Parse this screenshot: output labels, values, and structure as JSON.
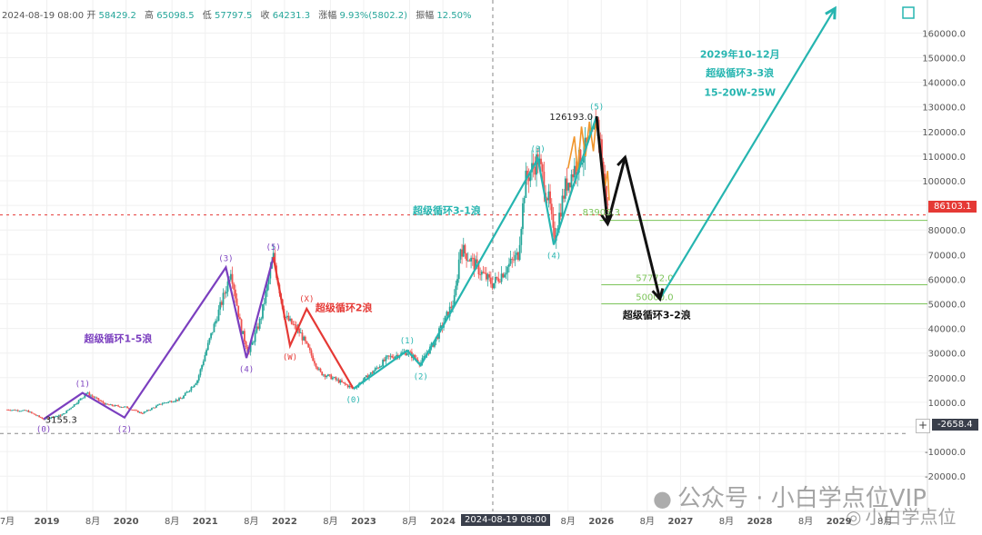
{
  "ohlc_header": {
    "date": "2024-08-19 08:00",
    "open_label": "开",
    "open": "58429.2",
    "high_label": "高",
    "high": "65098.5",
    "low_label": "低",
    "low": "57797.5",
    "close_label": "收",
    "close": "64231.3",
    "change_label": "涨幅",
    "change": "9.93%(5802.2)",
    "amplitude_label": "振幅",
    "amplitude": "12.50%"
  },
  "chart_data": {
    "type": "line",
    "ylim": [
      -28000,
      168000
    ],
    "xlim": [
      2018.5,
      2030.0
    ],
    "grid": true,
    "y_ticks": [
      -20000,
      -10000,
      0,
      10000,
      20000,
      30000,
      40000,
      50000,
      60000,
      70000,
      80000,
      90000,
      100000,
      110000,
      120000,
      130000,
      140000,
      150000,
      160000
    ],
    "y_tick_labels": [
      "-20000.0",
      "-10000.0",
      "0.0",
      "10000.0",
      "20000.0",
      "30000.0",
      "40000.0",
      "50000.0",
      "60000.0",
      "70000.0",
      "80000.0",
      "90000.0",
      "100000.0",
      "110000.0",
      "120000.0",
      "130000.0",
      "140000.0",
      "150000.0",
      "160000.0"
    ],
    "x_ticks": [
      {
        "x": 2018.5,
        "label": "7月"
      },
      {
        "x": 2019.0,
        "label": "2019"
      },
      {
        "x": 2019.58,
        "label": "8月"
      },
      {
        "x": 2020.0,
        "label": "2020"
      },
      {
        "x": 2020.58,
        "label": "8月"
      },
      {
        "x": 2021.0,
        "label": "2021"
      },
      {
        "x": 2021.58,
        "label": "8月"
      },
      {
        "x": 2022.0,
        "label": "2022"
      },
      {
        "x": 2022.58,
        "label": "8月"
      },
      {
        "x": 2023.0,
        "label": "2023"
      },
      {
        "x": 2023.58,
        "label": "8月"
      },
      {
        "x": 2024.0,
        "label": "2024"
      },
      {
        "x": 2025.58,
        "label": "8月"
      },
      {
        "x": 2026.0,
        "label": "2026"
      },
      {
        "x": 2026.58,
        "label": "8月"
      },
      {
        "x": 2027.0,
        "label": "2027"
      },
      {
        "x": 2027.58,
        "label": "8月"
      },
      {
        "x": 2028.0,
        "label": "2028"
      },
      {
        "x": 2028.58,
        "label": "8月"
      },
      {
        "x": 2029.0,
        "label": "2029"
      },
      {
        "x": 2029.58,
        "label": "8月"
      }
    ],
    "crosshair": {
      "x": 2024.63,
      "x_label": "2024-08-19 08:00",
      "y": -2658.4,
      "y_label": "-2658.4"
    },
    "last_price": {
      "value": 86103.1,
      "label": "86103.1",
      "color": "#e53935"
    },
    "price": {
      "name": "",
      "color_up": "#26a69a",
      "color_down": "#ef5350",
      "points": [
        [
          2018.5,
          7000
        ],
        [
          2018.75,
          6500
        ],
        [
          2018.96,
          3155.3
        ],
        [
          2019.2,
          5000
        ],
        [
          2019.45,
          12000
        ],
        [
          2019.5,
          13800
        ],
        [
          2019.75,
          9000
        ],
        [
          2020.0,
          8000
        ],
        [
          2020.2,
          5500
        ],
        [
          2020.45,
          9500
        ],
        [
          2020.7,
          11500
        ],
        [
          2020.9,
          19000
        ],
        [
          2021.05,
          35000
        ],
        [
          2021.28,
          58000
        ],
        [
          2021.32,
          64800
        ],
        [
          2021.45,
          40000
        ],
        [
          2021.55,
          30000
        ],
        [
          2021.7,
          44000
        ],
        [
          2021.86,
          69000
        ],
        [
          2022.0,
          45000
        ],
        [
          2022.2,
          38000
        ],
        [
          2022.45,
          22000
        ],
        [
          2022.6,
          20000
        ],
        [
          2022.87,
          15500
        ],
        [
          2023.1,
          22000
        ],
        [
          2023.3,
          28000
        ],
        [
          2023.55,
          30500
        ],
        [
          2023.72,
          26000
        ],
        [
          2023.9,
          35000
        ],
        [
          2024.15,
          52000
        ],
        [
          2024.22,
          73000
        ],
        [
          2024.5,
          62000
        ],
        [
          2024.63,
          58000
        ],
        [
          2024.95,
          70000
        ],
        [
          2025.04,
          100000
        ],
        [
          2025.2,
          109000
        ],
        [
          2025.35,
          90000
        ],
        [
          2025.4,
          76000
        ],
        [
          2025.55,
          98000
        ],
        [
          2025.78,
          112000
        ],
        [
          2025.9,
          118000
        ],
        [
          2025.94,
          126193
        ],
        [
          2026.0,
          112000
        ],
        [
          2026.05,
          95000
        ],
        [
          2026.1,
          86103
        ]
      ]
    },
    "wave_lines": [
      {
        "name": "超级循环1-5浪",
        "color": "#7b3fbf",
        "points": [
          [
            2018.96,
            3155.3
          ],
          [
            2019.45,
            13800
          ],
          [
            2019.98,
            3800
          ],
          [
            2021.26,
            64800
          ],
          [
            2021.52,
            28000
          ],
          [
            2021.86,
            69000
          ]
        ]
      },
      {
        "name": "超级循环2浪",
        "color": "#e53935",
        "points": [
          [
            2021.86,
            69000
          ],
          [
            2022.07,
            33000
          ],
          [
            2022.28,
            48000
          ],
          [
            2022.87,
            15500
          ]
        ]
      },
      {
        "name": "超级循环3-1浪",
        "color": "#26b5b0",
        "points": [
          [
            2022.87,
            15500
          ],
          [
            2023.55,
            31000
          ],
          [
            2023.72,
            25000
          ],
          [
            2025.2,
            109000
          ],
          [
            2025.4,
            74000
          ],
          [
            2025.94,
            126193
          ]
        ]
      },
      {
        "name": "forecast-abc",
        "color": "#111111",
        "points": [
          [
            2025.94,
            126193
          ],
          [
            2026.08,
            82500
          ],
          [
            2026.3,
            109500
          ],
          [
            2026.74,
            52000
          ]
        ]
      },
      {
        "name": "超级循环3-3浪",
        "color": "#26b5b0",
        "points": [
          [
            2026.74,
            52000
          ],
          [
            2028.95,
            170000
          ]
        ]
      }
    ],
    "wave_labels": [
      {
        "text": "(0)",
        "x": 2018.96,
        "y": -1000,
        "color": "#7b3fbf"
      },
      {
        "text": "(1)",
        "x": 2019.45,
        "y": 17500,
        "color": "#7b3fbf"
      },
      {
        "text": "(2)",
        "x": 2019.98,
        "y": -1000,
        "color": "#7b3fbf"
      },
      {
        "text": "(3)",
        "x": 2021.26,
        "y": 68500,
        "color": "#7b3fbf"
      },
      {
        "text": "(4)",
        "x": 2021.52,
        "y": 23500,
        "color": "#7b3fbf"
      },
      {
        "text": "(5)",
        "x": 2021.86,
        "y": 73000,
        "color": "#7b3fbf"
      },
      {
        "text": "(X)",
        "x": 2022.28,
        "y": 52000,
        "color": "#e53935"
      },
      {
        "text": "(W)",
        "x": 2022.07,
        "y": 28500,
        "color": "#e53935"
      },
      {
        "text": "(0)",
        "x": 2022.87,
        "y": 11000,
        "color": "#26b5b0"
      },
      {
        "text": "(1)",
        "x": 2023.55,
        "y": 35000,
        "color": "#26b5b0"
      },
      {
        "text": "(2)",
        "x": 2023.72,
        "y": 20500,
        "color": "#26b5b0"
      },
      {
        "text": "(3)",
        "x": 2025.2,
        "y": 113000,
        "color": "#26b5b0"
      },
      {
        "text": "(4)",
        "x": 2025.4,
        "y": 69500,
        "color": "#26b5b0"
      },
      {
        "text": "(5)",
        "x": 2025.94,
        "y": 130000,
        "color": "#26b5b0"
      }
    ],
    "annotations": [
      {
        "text": "超级循环1-5浪",
        "x": 2019.9,
        "y": 36000,
        "color": "#7b3fbf"
      },
      {
        "text": "超级循环2浪",
        "x": 2022.75,
        "y": 48500,
        "color": "#e53935"
      },
      {
        "text": "超级循环3-1浪",
        "x": 2024.05,
        "y": 88000,
        "color": "#26b5b0"
      },
      {
        "text": "2029年10-12月",
        "x": 2027.75,
        "y": 151500,
        "color": "#26b5b0"
      },
      {
        "text": "超级循环3-3浪",
        "x": 2027.75,
        "y": 144000,
        "color": "#26b5b0"
      },
      {
        "text": "15-20W-25W",
        "x": 2027.75,
        "y": 136000,
        "color": "#26b5b0"
      },
      {
        "text": "超级循环3-2浪",
        "x": 2026.7,
        "y": 45500,
        "color": "#111111"
      }
    ],
    "price_marks": [
      {
        "text": "3155.3",
        "x": 2019.18,
        "y": 3155.3,
        "color": "#222222"
      },
      {
        "text": "126193.0",
        "x": 2025.62,
        "y": 126193,
        "color": "#222222"
      },
      {
        "text": "83903.3",
        "x": 2026.0,
        "y": 87500,
        "color": "#7cc45a"
      }
    ],
    "levels": [
      {
        "value": 83903.3,
        "label": "",
        "color": "#7cc45a",
        "x_start": 2025.98
      },
      {
        "value": 57772.0,
        "label": "57772.0",
        "color": "#7cc45a",
        "x_start": 2026.0
      },
      {
        "value": 50000.0,
        "label": "50000.0",
        "color": "#7cc45a",
        "x_start": 2026.0
      }
    ]
  },
  "watermark": "公众号 · 小白学点位VIP",
  "watermark2": "小白学点位"
}
